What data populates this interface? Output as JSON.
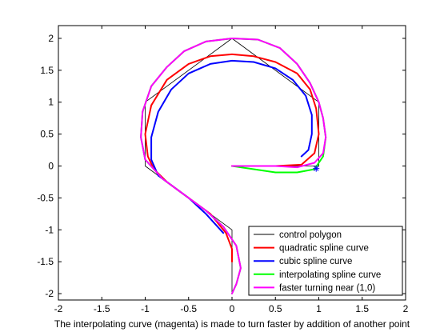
{
  "chart_data": {
    "type": "line",
    "xlabel": "The interpolating curve (magenta) is made to turn faster by addition of another point",
    "ylabel": "",
    "xlim": [
      -2,
      2
    ],
    "ylim": [
      -2.1,
      2.2
    ],
    "xticks": [
      "-2",
      "-1.5",
      "-1",
      "-0.5",
      "0",
      "0.5",
      "1",
      "1.5",
      "2"
    ],
    "yticks": [
      "-2",
      "-1.5",
      "-1",
      "-0.5",
      "0",
      "0.5",
      "1",
      "1.5",
      "2"
    ],
    "legend_position": "bottom-right",
    "series": [
      {
        "name": "control polygon",
        "color": "#000000",
        "x": [
          0,
          1,
          1,
          0,
          -1,
          -1,
          0,
          0
        ],
        "y": [
          0,
          0,
          1,
          2,
          1,
          0,
          -1,
          -2
        ]
      },
      {
        "name": "quadratic spline curve",
        "color": "#ff0000",
        "x": [
          0,
          0.5,
          0.8,
          0.95,
          1.0,
          0.97,
          0.9,
          0.75,
          0.5,
          0.25,
          0,
          -0.25,
          -0.5,
          -0.75,
          -0.93,
          -1.0,
          -0.97,
          -0.9,
          -0.75,
          -0.5,
          -0.25,
          -0.07,
          0,
          0
        ],
        "y": [
          0,
          0,
          0.02,
          0.2,
          0.5,
          0.9,
          1.2,
          1.45,
          1.63,
          1.72,
          1.75,
          1.72,
          1.6,
          1.35,
          0.95,
          0.5,
          0.15,
          -0.05,
          -0.25,
          -0.5,
          -0.75,
          -1.05,
          -1.3,
          -1.5
        ]
      },
      {
        "name": "cubic spline curve",
        "color": "#0000ff",
        "x": [
          0.8,
          0.88,
          0.92,
          0.92,
          0.85,
          0.7,
          0.5,
          0.25,
          0,
          -0.25,
          -0.5,
          -0.7,
          -0.85,
          -0.93,
          -0.93,
          -0.85,
          -0.7,
          -0.5,
          -0.3,
          -0.1
        ],
        "y": [
          0.15,
          0.25,
          0.5,
          0.8,
          1.1,
          1.35,
          1.53,
          1.63,
          1.65,
          1.6,
          1.45,
          1.2,
          0.85,
          0.45,
          0.1,
          -0.15,
          -0.3,
          -0.5,
          -0.75,
          -1.05
        ]
      },
      {
        "name": "interpolating spline curve",
        "color": "#00ff00",
        "x": [
          0,
          0.25,
          0.5,
          0.75,
          0.95,
          1.05,
          1.08,
          1.05,
          1.0,
          0.9,
          0.75,
          0.55,
          0.3,
          0,
          -0.3,
          -0.55,
          -0.75,
          -0.93,
          -1.03,
          -1.05,
          -1.0,
          -0.8,
          -0.5,
          -0.3,
          -0.1,
          0.05,
          0.1,
          0.05,
          0
        ],
        "y": [
          0,
          -0.05,
          -0.1,
          -0.1,
          -0.05,
          0.15,
          0.45,
          0.75,
          1.0,
          1.3,
          1.6,
          1.85,
          1.98,
          2.0,
          1.95,
          1.8,
          1.55,
          1.25,
          0.85,
          0.45,
          0.1,
          -0.2,
          -0.5,
          -0.7,
          -0.95,
          -1.25,
          -1.6,
          -1.85,
          -2.0
        ]
      },
      {
        "name": "faster turning near (1,0)",
        "color": "#ff00ff",
        "x": [
          0,
          0.25,
          0.5,
          0.75,
          0.95,
          1.05,
          1.08,
          1.05,
          1.0,
          0.9,
          0.75,
          0.55,
          0.3,
          0,
          -0.3,
          -0.55,
          -0.75,
          -0.93,
          -1.03,
          -1.05,
          -1.0,
          -0.8,
          -0.5,
          -0.3,
          -0.1,
          0.05,
          0.1,
          0.05,
          0
        ],
        "y": [
          0,
          0,
          0,
          -0.02,
          0.05,
          0.2,
          0.45,
          0.75,
          1.0,
          1.3,
          1.6,
          1.85,
          1.98,
          2.0,
          1.95,
          1.8,
          1.55,
          1.25,
          0.85,
          0.45,
          0.1,
          -0.2,
          -0.5,
          -0.7,
          -0.95,
          -1.25,
          -1.6,
          -1.85,
          -2.0
        ]
      }
    ],
    "markers": [
      {
        "x": 0.97,
        "y": -0.04,
        "symbol": "*",
        "color": "#0000ff"
      }
    ]
  }
}
